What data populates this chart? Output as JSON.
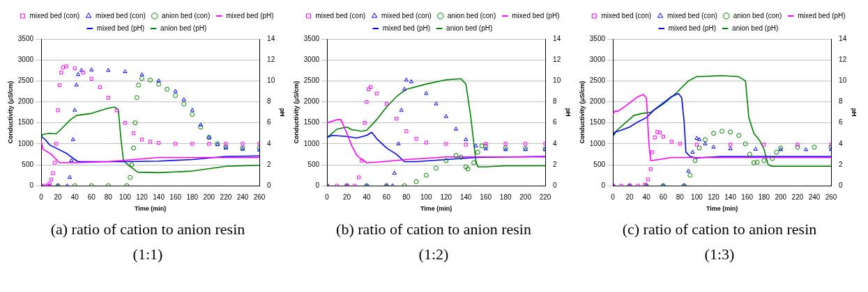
{
  "chart_data": [
    {
      "type": "scatter",
      "annotations": [
        "(a) ratio of cation to anion resin (1:1)"
      ],
      "xlabel": "Time (min)",
      "ylabel": "Conductivity (μS/cm)",
      "y2label": "pH",
      "xlim": [
        0,
        260
      ],
      "xticks": [
        0,
        20,
        40,
        60,
        80,
        100,
        120,
        140,
        160,
        180,
        200,
        220,
        240,
        260
      ],
      "ylim": [
        0,
        3500
      ],
      "yticks": [
        0,
        500,
        1000,
        1500,
        2000,
        2500,
        3000,
        3500
      ],
      "y2lim": [
        0,
        14
      ],
      "y2ticks": [
        0,
        2,
        4,
        6,
        8,
        10,
        12,
        14
      ],
      "grid": "y",
      "legend": "top",
      "series": [
        {
          "name": "mixed bed (con)",
          "marker": "square",
          "color": "#ff00ff",
          "x": [
            0,
            5,
            8,
            10,
            12,
            14,
            16,
            18,
            20,
            22,
            24,
            26,
            30,
            40,
            50,
            60,
            70,
            80,
            90,
            100,
            110,
            120,
            130,
            140,
            160,
            180,
            200,
            220,
            240,
            260
          ],
          "values": [
            0,
            0,
            0,
            50,
            150,
            300,
            550,
            1000,
            1800,
            2400,
            2700,
            2820,
            2850,
            2800,
            2700,
            2550,
            2350,
            2100,
            1800,
            1500,
            1250,
            1100,
            1050,
            1020,
            1000,
            1000,
            1000,
            1000,
            1000,
            1000
          ]
        },
        {
          "name": "mixed bed (con)",
          "marker": "triangle",
          "color": "#0000ff",
          "x": [
            0,
            10,
            20,
            31,
            34,
            36,
            38,
            40,
            42,
            44,
            48,
            60,
            80,
            100,
            120,
            140,
            160,
            170,
            180,
            190,
            200,
            210,
            220,
            240,
            260
          ],
          "values": [
            0,
            0,
            0,
            0,
            200,
            600,
            1100,
            1800,
            2400,
            2650,
            2750,
            2760,
            2750,
            2720,
            2650,
            2500,
            2250,
            2050,
            1800,
            1450,
            1150,
            980,
            900,
            870,
            850
          ]
        },
        {
          "name": "anion bed (con)",
          "marker": "circle",
          "color": "#008000",
          "x": [
            0,
            20,
            40,
            60,
            80,
            102,
            106,
            108,
            110,
            112,
            114,
            116,
            120,
            130,
            140,
            150,
            160,
            170,
            180,
            190,
            200,
            210,
            220,
            240,
            260
          ],
          "values": [
            0,
            0,
            0,
            0,
            0,
            0,
            200,
            500,
            900,
            1500,
            2100,
            2400,
            2560,
            2520,
            2420,
            2300,
            2150,
            1950,
            1700,
            1400,
            1150,
            1000,
            930,
            900,
            900
          ]
        },
        {
          "name": "mixed bed (pH)",
          "type": "line",
          "axis": "y2",
          "color": "#ff00ff",
          "x": [
            0,
            2,
            12,
            18,
            22,
            40,
            80,
            110,
            140,
            260
          ],
          "values": [
            4.3,
            3.5,
            3.0,
            2.5,
            2.2,
            2.2,
            2.3,
            2.5,
            2.7,
            2.7
          ]
        },
        {
          "name": "mixed bed (pH)",
          "type": "line",
          "axis": "y2",
          "color": "#0000ff",
          "x": [
            0,
            5,
            10,
            20,
            30,
            40,
            44,
            100,
            140,
            180,
            220,
            260
          ],
          "values": [
            4.7,
            4.4,
            3.9,
            3.5,
            3.1,
            2.5,
            2.3,
            2.3,
            2.35,
            2.5,
            2.8,
            2.85
          ]
        },
        {
          "name": "anion bed (pH)",
          "type": "line",
          "axis": "y2",
          "color": "#008000",
          "x": [
            0,
            2,
            10,
            18,
            25,
            35,
            42,
            60,
            80,
            88,
            92,
            95,
            98,
            105,
            115,
            140,
            180,
            220,
            260
          ],
          "values": [
            4.6,
            4.9,
            5.0,
            4.95,
            5.5,
            6.3,
            6.7,
            6.9,
            7.4,
            7.5,
            7.2,
            4.5,
            2.4,
            1.9,
            1.3,
            1.25,
            1.4,
            1.85,
            1.95
          ]
        }
      ]
    },
    {
      "type": "scatter",
      "annotations": [
        "(b) ratio of cation to anion resin (1:2)"
      ],
      "xlabel": "Time (min)",
      "ylabel": "Conductivity (μS/cm)",
      "y2label": "pH",
      "xlim": [
        0,
        220
      ],
      "xticks": [
        0,
        20,
        40,
        60,
        80,
        100,
        120,
        140,
        160,
        180,
        200,
        220
      ],
      "ylim": [
        0,
        3500
      ],
      "yticks": [
        0,
        500,
        1000,
        1500,
        2000,
        2500,
        3000,
        3500
      ],
      "y2lim": [
        0,
        14
      ],
      "y2ticks": [
        0,
        2,
        4,
        6,
        8,
        10,
        12,
        14
      ],
      "grid": "y",
      "legend": "top",
      "series": [
        {
          "name": "mixed bed (con)",
          "marker": "square",
          "color": "#ff00ff",
          "x": [
            0,
            10,
            20,
            28,
            32,
            35,
            38,
            40,
            42,
            44,
            50,
            60,
            70,
            80,
            90,
            100,
            120,
            140,
            160,
            180,
            200,
            220
          ],
          "values": [
            0,
            0,
            0,
            0,
            200,
            600,
            1500,
            2000,
            2300,
            2350,
            2200,
            1950,
            1600,
            1300,
            1120,
            1030,
            1000,
            980,
            1000,
            1000,
            1000,
            1000
          ]
        },
        {
          "name": "mixed bed (con)",
          "marker": "triangle",
          "color": "#0000ff",
          "x": [
            0,
            20,
            40,
            60,
            66,
            68,
            72,
            75,
            78,
            80,
            85,
            100,
            110,
            120,
            130,
            140,
            150,
            160,
            180,
            200,
            220
          ],
          "values": [
            0,
            0,
            0,
            0,
            0,
            300,
            1000,
            1800,
            2300,
            2520,
            2480,
            2200,
            1950,
            1650,
            1350,
            1100,
            950,
            880,
            860,
            860,
            860
          ]
        },
        {
          "name": "anion bed (con)",
          "marker": "circle",
          "color": "#008000",
          "x": [
            0,
            20,
            40,
            60,
            78,
            90,
            100,
            110,
            120,
            130,
            135,
            140,
            142,
            148,
            152,
            156,
            160,
            180,
            200,
            220
          ],
          "values": [
            0,
            0,
            0,
            0,
            0,
            100,
            250,
            420,
            600,
            720,
            680,
            450,
            400,
            550,
            800,
            950,
            940,
            900,
            890,
            880
          ]
        },
        {
          "name": "mixed bed (pH)",
          "type": "line",
          "axis": "y2",
          "color": "#ff00ff",
          "x": [
            0,
            10,
            14,
            20,
            25,
            30,
            35,
            40,
            50,
            80,
            120,
            220
          ],
          "values": [
            6.0,
            6.3,
            6.3,
            5.0,
            3.8,
            2.9,
            2.5,
            2.2,
            2.25,
            2.5,
            2.75,
            2.75
          ]
        },
        {
          "name": "mixed bed (pH)",
          "type": "line",
          "axis": "y2",
          "color": "#0000ff",
          "x": [
            0,
            5,
            20,
            30,
            40,
            45,
            50,
            60,
            70,
            78,
            90,
            120,
            150,
            220
          ],
          "values": [
            4.6,
            4.8,
            4.7,
            4.55,
            4.8,
            5.1,
            4.5,
            3.6,
            3.0,
            2.3,
            2.3,
            2.5,
            2.7,
            2.8
          ]
        },
        {
          "name": "anion bed (pH)",
          "type": "line",
          "axis": "y2",
          "color": "#008000",
          "x": [
            0,
            10,
            20,
            25,
            35,
            40,
            50,
            60,
            70,
            80,
            100,
            120,
            135,
            140,
            145,
            150,
            152,
            160,
            180,
            220
          ],
          "values": [
            4.6,
            5.4,
            5.6,
            5.35,
            5.2,
            5.3,
            6.3,
            7.5,
            8.5,
            9.2,
            9.7,
            10.1,
            10.2,
            9.7,
            6.5,
            2.4,
            1.8,
            1.8,
            1.9,
            1.9
          ]
        }
      ]
    },
    {
      "type": "scatter",
      "annotations": [
        "(c) ratio of cation to anion resin (1:3)"
      ],
      "xlabel": "Time (min)",
      "ylabel": "Conductivity (μS/cm)",
      "y2label": "pH",
      "xlim": [
        0,
        260
      ],
      "xticks": [
        0,
        20,
        40,
        60,
        80,
        100,
        120,
        140,
        160,
        180,
        200,
        220,
        240,
        260
      ],
      "ylim": [
        0,
        3500
      ],
      "yticks": [
        0,
        500,
        1000,
        1500,
        2000,
        2500,
        3000,
        3500
      ],
      "y2lim": [
        0,
        14
      ],
      "y2ticks": [
        0,
        2,
        4,
        6,
        8,
        10,
        12,
        14
      ],
      "grid": "y",
      "legend": "top",
      "series": [
        {
          "name": "mixed bed (con)",
          "marker": "square",
          "color": "#ff00ff",
          "x": [
            0,
            10,
            20,
            30,
            38,
            42,
            45,
            47,
            50,
            53,
            56,
            60,
            70,
            80,
            100,
            140,
            180,
            220,
            260
          ],
          "values": [
            0,
            0,
            0,
            0,
            30,
            150,
            400,
            800,
            1150,
            1280,
            1270,
            1170,
            1050,
            1000,
            980,
            980,
            980,
            980,
            980
          ]
        },
        {
          "name": "mixed bed (con)",
          "marker": "triangle",
          "color": "#0000ff",
          "x": [
            0,
            20,
            40,
            60,
            85,
            90,
            95,
            100,
            103,
            110,
            120,
            140,
            170,
            200,
            230,
            260
          ],
          "values": [
            0,
            0,
            0,
            0,
            0,
            350,
            800,
            1130,
            1100,
            1000,
            920,
            880,
            870,
            860,
            860,
            860
          ]
        },
        {
          "name": "anion bed (con)",
          "marker": "circle",
          "color": "#008000",
          "x": [
            0,
            20,
            40,
            60,
            85,
            92,
            98,
            103,
            110,
            120,
            130,
            140,
            150,
            158,
            163,
            168,
            172,
            180,
            190,
            195,
            200,
            220,
            240,
            260
          ],
          "values": [
            0,
            0,
            0,
            0,
            0,
            250,
            600,
            900,
            1100,
            1250,
            1300,
            1280,
            1200,
            1000,
            750,
            550,
            560,
            600,
            650,
            800,
            900,
            920,
            920,
            920
          ]
        },
        {
          "name": "mixed bed (pH)",
          "type": "line",
          "axis": "y2",
          "color": "#ff00ff",
          "x": [
            0,
            2,
            6,
            15,
            30,
            36,
            40,
            43,
            45,
            55,
            70,
            260
          ],
          "values": [
            6.8,
            7.1,
            7.1,
            7.6,
            8.5,
            8.7,
            8.4,
            4.0,
            2.4,
            2.5,
            2.7,
            2.7
          ]
        },
        {
          "name": "mixed bed (pH)",
          "type": "line",
          "axis": "y2",
          "color": "#0000ff",
          "x": [
            0,
            2,
            10,
            20,
            30,
            40,
            50,
            60,
            70,
            78,
            82,
            85,
            87,
            92,
            100,
            130,
            260
          ],
          "values": [
            4.8,
            5.1,
            5.3,
            5.6,
            6.1,
            6.5,
            7.3,
            7.9,
            8.5,
            8.8,
            8.4,
            6.0,
            3.2,
            2.8,
            2.65,
            2.8,
            2.8
          ]
        },
        {
          "name": "anion bed (pH)",
          "type": "line",
          "axis": "y2",
          "color": "#008000",
          "x": [
            0,
            5,
            15,
            25,
            35,
            45,
            60,
            75,
            90,
            100,
            130,
            150,
            158,
            162,
            168,
            175,
            180,
            185,
            190,
            260
          ],
          "values": [
            4.7,
            5.3,
            6.0,
            6.7,
            6.9,
            7.0,
            7.8,
            8.8,
            10.0,
            10.4,
            10.5,
            10.4,
            10.0,
            6.5,
            5.0,
            4.3,
            3.5,
            2.0,
            1.85,
            1.85
          ]
        }
      ]
    }
  ]
}
